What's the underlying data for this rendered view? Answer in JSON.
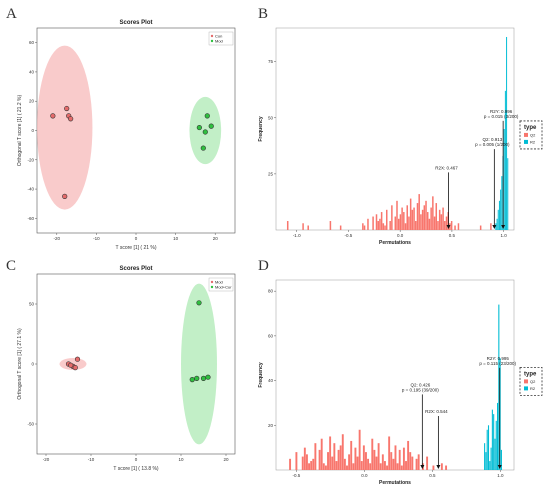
{
  "panel_labels": [
    "A",
    "B",
    "C",
    "D"
  ],
  "colors": {
    "red": "#f8766d",
    "cyan": "#00bcd4",
    "ellipse_red": "#f7b9b9",
    "ellipse_green": "#aee9b4",
    "point_red": "#e46b6b",
    "point_green": "#2fbf3f"
  },
  "chart_data": [
    {
      "panel": "A",
      "type": "scatter",
      "title": "Scores Plot",
      "xlabel": "T score [1] ( 21 %)",
      "ylabel": "Orthogonal T score [1] ( 21.2 %)",
      "xlim": [
        -25,
        25
      ],
      "ylim": [
        -70,
        70
      ],
      "xticks": [
        -20,
        -10,
        0,
        10,
        20
      ],
      "yticks": [
        -60,
        -40,
        -20,
        0,
        20,
        40,
        60
      ],
      "legend": [
        "Con",
        "Mod"
      ],
      "legend_position": "top-right",
      "series": [
        {
          "name": "Con",
          "color": "#e46b6b",
          "points": [
            [
              -21,
              10
            ],
            [
              -17.5,
              15
            ],
            [
              -17,
              10
            ],
            [
              -16.5,
              8
            ],
            [
              -18,
              -45
            ]
          ],
          "ellipse": {
            "cx": -18,
            "cy": 2,
            "rx": 7,
            "ry": 56
          }
        },
        {
          "name": "Mod",
          "color": "#2fbf3f",
          "points": [
            [
              16,
              2
            ],
            [
              18,
              10
            ],
            [
              19,
              3
            ],
            [
              17.5,
              -1
            ],
            [
              17,
              -12
            ]
          ],
          "ellipse": {
            "cx": 17.5,
            "cy": 0,
            "rx": 4,
            "ry": 23
          }
        }
      ]
    },
    {
      "panel": "B",
      "type": "bar",
      "xlabel": "Permutations",
      "ylabel": "Frequency",
      "xlim": [
        -1.2,
        1.1
      ],
      "ylim": [
        0,
        90
      ],
      "xticks": [
        -1.0,
        -0.5,
        0.0,
        0.5,
        1.0
      ],
      "yticks": [
        25,
        50,
        75
      ],
      "legend_title": "type",
      "legend": [
        "Q2",
        "R2"
      ],
      "legend_position": "right",
      "q2_bars": {
        "x_start": -1.16,
        "bin_width": 0.0165,
        "values": [
          0,
          0,
          0,
          0,
          4,
          0,
          0,
          0,
          0,
          0,
          0,
          0,
          0,
          3,
          0,
          0,
          2,
          0,
          0,
          0,
          0,
          0,
          0,
          0,
          0,
          0,
          0,
          0,
          0,
          4,
          0,
          0,
          0,
          0,
          0,
          2,
          0,
          0,
          0,
          0,
          0,
          0,
          0,
          0,
          0,
          0,
          0,
          0,
          3,
          2,
          0,
          5,
          0,
          0,
          6,
          0,
          7,
          4,
          5,
          8,
          3,
          2,
          9,
          0,
          4,
          11,
          0,
          6,
          13,
          5,
          7,
          10,
          8,
          3,
          11,
          6,
          14,
          9,
          10,
          4,
          12,
          16,
          7,
          9,
          11,
          13,
          8,
          5,
          10,
          15,
          6,
          12,
          4,
          9,
          7,
          10,
          4,
          6,
          8,
          3,
          4,
          0,
          2,
          0,
          3,
          0,
          0,
          0,
          0,
          0,
          0,
          0,
          0,
          0,
          0,
          0,
          0,
          2,
          0,
          0,
          0,
          0,
          0,
          3,
          0,
          0,
          0,
          0
        ]
      },
      "r2_bars": {
        "x_start": 0.92,
        "bin_width": 0.0115,
        "values": [
          3,
          5,
          9,
          13,
          18,
          24,
          33,
          45,
          62,
          86,
          32
        ]
      },
      "annotations": [
        {
          "text_lines": [
            "R2Y: 0.996",
            "p = 0.015 (3/200)"
          ],
          "x": 0.995,
          "tip_y": 0
        },
        {
          "text_lines": [
            "Q2: 0.913",
            "p = 0.005 (1/200)"
          ],
          "x": 0.91,
          "tip_y": 0
        },
        {
          "text_lines": [
            "R2X: 0.467"
          ],
          "x": 0.467,
          "tip_y": 0
        }
      ]
    },
    {
      "panel": "C",
      "type": "scatter",
      "title": "Scores Plot",
      "xlabel": "T score [1] ( 13.8 %)",
      "ylabel": "Orthogonal T score [1] ( 27.1 %)",
      "xlim": [
        -22,
        22
      ],
      "ylim": [
        -75,
        75
      ],
      "xticks": [
        -20,
        -10,
        0,
        10,
        20
      ],
      "yticks": [
        -50,
        0,
        50
      ],
      "legend": [
        "Mod",
        "Mod+Cur"
      ],
      "legend_position": "top-right",
      "series": [
        {
          "name": "Mod",
          "color": "#e46b6b",
          "points": [
            [
              -15,
              0
            ],
            [
              -14,
              -2
            ],
            [
              -13.5,
              -3
            ],
            [
              -13,
              4
            ],
            [
              -14.5,
              -1
            ]
          ],
          "ellipse": {
            "cx": -14,
            "cy": 0,
            "rx": 3,
            "ry": 5
          }
        },
        {
          "name": "Mod+Cur",
          "color": "#2fbf3f",
          "points": [
            [
              14,
              51
            ],
            [
              12.5,
              -13
            ],
            [
              13.5,
              -12
            ],
            [
              15,
              -12
            ],
            [
              16,
              -11
            ]
          ],
          "ellipse": {
            "cx": 14,
            "cy": 0,
            "rx": 4,
            "ry": 67
          }
        }
      ]
    },
    {
      "panel": "D",
      "type": "bar",
      "xlabel": "Permutations",
      "ylabel": "Frequency",
      "xlim": [
        -0.65,
        1.1
      ],
      "ylim": [
        0,
        85
      ],
      "xticks": [
        -0.5,
        0.0,
        0.5,
        1.0
      ],
      "yticks": [
        20,
        40,
        60,
        80
      ],
      "legend_title": "type",
      "legend": [
        "Q2",
        "R2"
      ],
      "legend_position": "right",
      "q2_bars": {
        "x_start": -0.6,
        "bin_width": 0.0155,
        "values": [
          0,
          0,
          0,
          5,
          0,
          0,
          8,
          0,
          0,
          6,
          10,
          7,
          3,
          4,
          5,
          12,
          0,
          9,
          14,
          3,
          2,
          8,
          15,
          6,
          12,
          4,
          9,
          11,
          16,
          5,
          2,
          7,
          13,
          3,
          10,
          6,
          18,
          4,
          11,
          8,
          5,
          3,
          14,
          9,
          6,
          12,
          3,
          7,
          4,
          2,
          15,
          8,
          5,
          11,
          3,
          9,
          2,
          10,
          4,
          13,
          8,
          6,
          0,
          5,
          7,
          0,
          3,
          0,
          6,
          0,
          0,
          2,
          0,
          0,
          0,
          3,
          0,
          2,
          0
        ]
      },
      "r2_bars": {
        "x_start": 0.88,
        "bin_width": 0.0095,
        "values": [
          12,
          8,
          18,
          20,
          4,
          10,
          27,
          25,
          14,
          22,
          30,
          74,
          50,
          9
        ]
      },
      "annotations": [
        {
          "text_lines": [
            "R2Y: 0.995",
            "p = 0.115 (23/200)"
          ],
          "x": 0.995,
          "tip_y": 0
        },
        {
          "text_lines": [
            "Q2: 0.426",
            "p = 0.195 (39/200)"
          ],
          "x": 0.426,
          "tip_y": 0
        },
        {
          "text_lines": [
            "R2X: 0.544"
          ],
          "x": 0.544,
          "tip_y": 0
        }
      ]
    }
  ]
}
